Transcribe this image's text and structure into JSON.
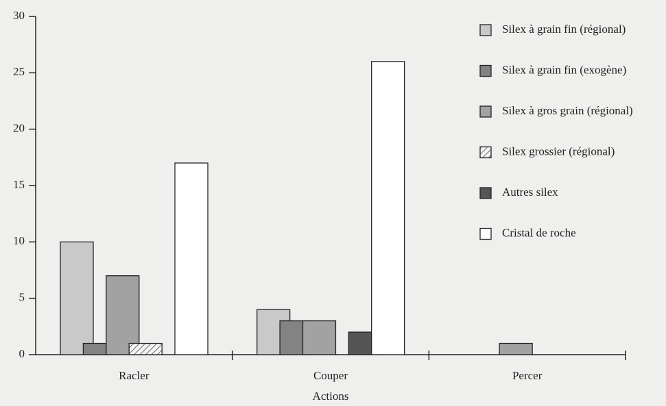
{
  "chart_data": {
    "type": "bar",
    "x_label": "Actions",
    "categories": [
      "Racler",
      "Couper",
      "Percer"
    ],
    "series": [
      {
        "name": "Silex à grain fin (régional)",
        "color": "#c9c9c9",
        "values": [
          10,
          4,
          0
        ]
      },
      {
        "name": "Silex à grain fin (exogène)",
        "color": "#838383",
        "values": [
          1,
          3,
          0
        ]
      },
      {
        "name": "Silex à gros grain (régional)",
        "color": "#a2a2a2",
        "values": [
          7,
          3,
          1
        ]
      },
      {
        "name": "Silex grossier (régional)",
        "color": "hatch",
        "values": [
          1,
          0,
          0
        ]
      },
      {
        "name": "Autres silex",
        "color": "#555555",
        "values": [
          0,
          2,
          0
        ]
      },
      {
        "name": "Cristal de roche",
        "color": "#ffffff",
        "values": [
          17,
          26,
          0
        ]
      }
    ],
    "ylim": [
      0,
      30
    ],
    "yticks": [
      0,
      5,
      10,
      15,
      20,
      25,
      30
    ],
    "legend": "right"
  }
}
